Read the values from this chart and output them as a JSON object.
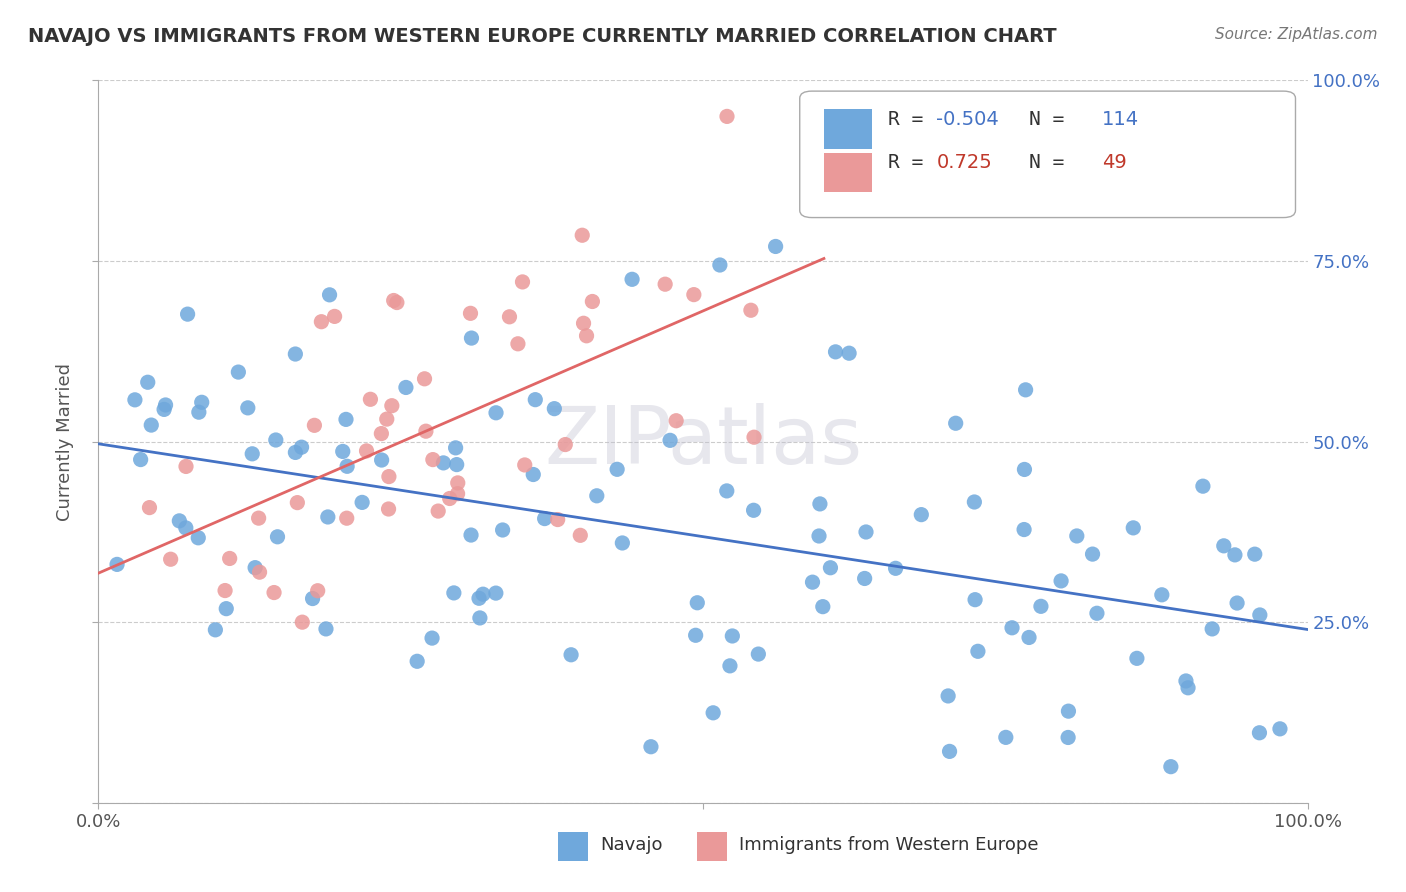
{
  "title": "NAVAJO VS IMMIGRANTS FROM WESTERN EUROPE CURRENTLY MARRIED CORRELATION CHART",
  "source": "Source: ZipAtlas.com",
  "ylabel": "Currently Married",
  "navajo_R": -0.504,
  "navajo_N": 114,
  "western_europe_R": 0.725,
  "western_europe_N": 49,
  "navajo_color": "#6fa8dc",
  "western_europe_color": "#ea9999",
  "navajo_line_color": "#4472c4",
  "western_europe_line_color": "#e06666",
  "background_color": "#ffffff",
  "grid_color": "#cccccc",
  "xlim": [
    0,
    1
  ],
  "ylim": [
    0,
    1
  ],
  "ytick_values": [
    0,
    0.25,
    0.5,
    0.75,
    1.0
  ],
  "navajo_seed": 42,
  "western_seed": 123
}
